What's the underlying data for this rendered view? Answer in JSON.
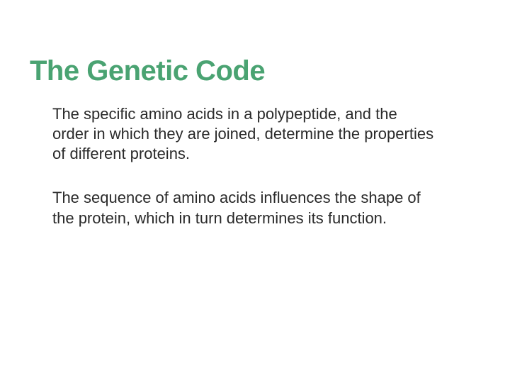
{
  "slide": {
    "title": "The Genetic Code",
    "title_color": "#4aa372",
    "title_fontsize": 40,
    "body_fontsize": 22,
    "body_color": "#2a2a2a",
    "background_color": "#ffffff",
    "paragraphs": [
      "The specific amino acids in a polypeptide, and the order in which they are joined, determine the properties of different proteins.",
      "The sequence of amino acids influences the shape of the protein, which in turn determines its function."
    ]
  }
}
